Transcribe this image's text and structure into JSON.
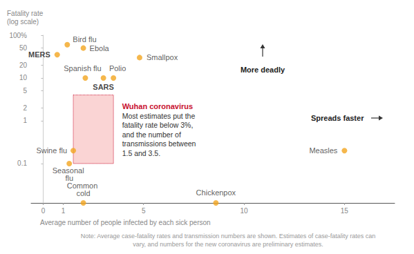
{
  "chart_data": {
    "type": "scatter",
    "x_label": "Average number of people infected by each sick person",
    "y_label": "Fatality rate\n(log scale)",
    "log": "y",
    "grid": false,
    "color": "#f2a51f",
    "names": [
      "MERS",
      "Bird flu",
      "Ebola",
      "Smallpox",
      "Spanish flu",
      "SARS",
      "Polio",
      "Swine flu",
      "Seasonal flu",
      "Common cold",
      "Chickenpox",
      "Measles"
    ],
    "x": [
      0.7,
      1.2,
      2.0,
      4.8,
      2.1,
      3.0,
      3.5,
      1.5,
      1.3,
      2.0,
      8.6,
      15
    ],
    "values": [
      35,
      60,
      50,
      30,
      10,
      10,
      10,
      0.2,
      0.1,
      0.012,
      0.012,
      0.2
    ],
    "xlim": [
      -0.6,
      17.5
    ],
    "xticks": [
      0,
      1,
      5,
      10,
      15
    ],
    "ylim": [
      0.012,
      100
    ],
    "yticks": [
      0.1,
      1,
      2,
      5,
      10,
      20,
      50,
      {
        "value": 100,
        "label": "100%"
      }
    ],
    "highlight": {
      "label": "Wuhan coronavirus",
      "text": [
        "Most estimates put the",
        "fatality rate below 3%,",
        "and the number of",
        "transmissions between",
        "1.5 and 3.5."
      ],
      "x": [
        1.5,
        3.5
      ],
      "y": [
        0.1,
        4
      ],
      "color": "#c8102e"
    },
    "annotations": [
      "More deadly",
      "Spreads faster"
    ],
    "note": "Note: Average case-fatality rates and transmission numbers are shown. Estimates of case-fatality rates can\nvary, and numbers for the new coronavirus are preliminary estimates."
  }
}
